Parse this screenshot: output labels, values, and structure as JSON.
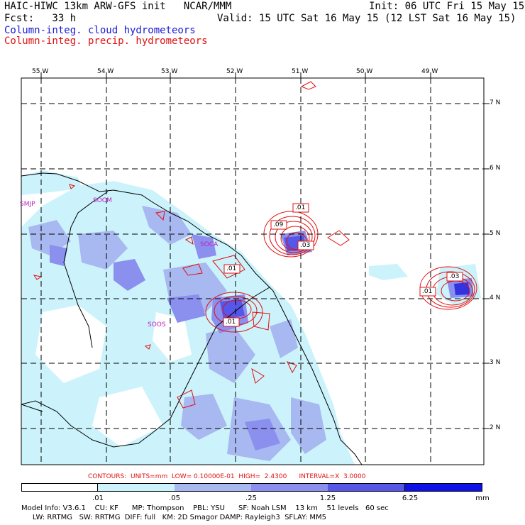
{
  "header": {
    "model_line": "HAIC-HIWC 13km ARW-GFS init   NCAR/MMM",
    "fcst_line": "Fcst:   33 h",
    "init_line": "Init: 06 UTC Fri 15 May 15",
    "valid_line": "Valid: 15 UTC Sat 16 May 15 (12 LST Sat 16 May 15)",
    "field1": "Column-integ. cloud hydrometeors",
    "field2": "Column-integ. precip. hydrometeors"
  },
  "colors": {
    "cloud_field": "#1a1ad6",
    "precip_field": "#e01010",
    "shade_1": "#ccf3fb",
    "shade_2": "#a8b8f0",
    "shade_3": "#8b8fee",
    "shade_4": "#5656e8",
    "shade_5": "#3232e0",
    "shade_6": "#1010e8"
  },
  "axes": {
    "lon_labels": [
      "55 W",
      "54 W",
      "53 W",
      "52 W",
      "51 W",
      "50 W",
      "49 W"
    ],
    "lat_labels": [
      "7 N",
      "6 N",
      "5 N",
      "4 N",
      "3 N",
      "2 N"
    ]
  },
  "place_labels": [
    "SMJP",
    "SOCM",
    "SOCA",
    "SOOS"
  ],
  "contour_labels": [
    ".01",
    ".09",
    ".03",
    ".01",
    ".01",
    ".03",
    ".01"
  ],
  "contours_line": "CONTOURS:  UNITS=mm  LOW= 0.10000E-01  HIGH=  2.4300      INTERVAL=X  3.0000",
  "legend": {
    "labels": [
      ".01",
      ".05",
      ".25",
      "1.25",
      "6.25"
    ],
    "unit": "mm"
  },
  "footer": {
    "line1": "Model Info: V3.6.1    CU: KF      MP: Thompson    PBL: YSU      SF: Noah LSM    13 km    51 levels   60 sec",
    "line2": "     LW: RRTMG   SW: RRTMG  DIFF: full   KM: 2D Smagor DAMP: Rayleigh3  SFLAY: MM5"
  }
}
